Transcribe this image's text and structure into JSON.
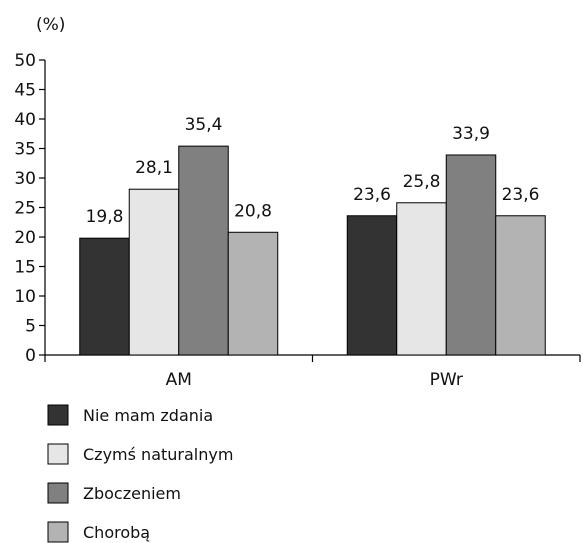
{
  "chart_data": {
    "type": "bar",
    "ylabel": "(%)",
    "ylim": [
      0,
      50
    ],
    "yticks": [
      0,
      5,
      10,
      15,
      20,
      25,
      30,
      35,
      40,
      45,
      50
    ],
    "categories": [
      "AM",
      "PWr"
    ],
    "series": [
      {
        "name": "Nie mam zdania",
        "color": "#333333",
        "values": [
          19.8,
          23.6
        ],
        "labels": [
          "19,8",
          "23,6"
        ]
      },
      {
        "name": "Czymś naturalnym",
        "color": "#e6e6e6",
        "values": [
          28.1,
          25.8
        ],
        "labels": [
          "28,1",
          "25,8"
        ]
      },
      {
        "name": "Zboczeniem",
        "color": "#808080",
        "values": [
          35.4,
          33.9
        ],
        "labels": [
          "35,4",
          "33,9"
        ]
      },
      {
        "name": "Chorobą",
        "color": "#b3b3b3",
        "values": [
          20.8,
          23.6
        ],
        "labels": [
          "20,8",
          "23,6"
        ]
      }
    ]
  }
}
